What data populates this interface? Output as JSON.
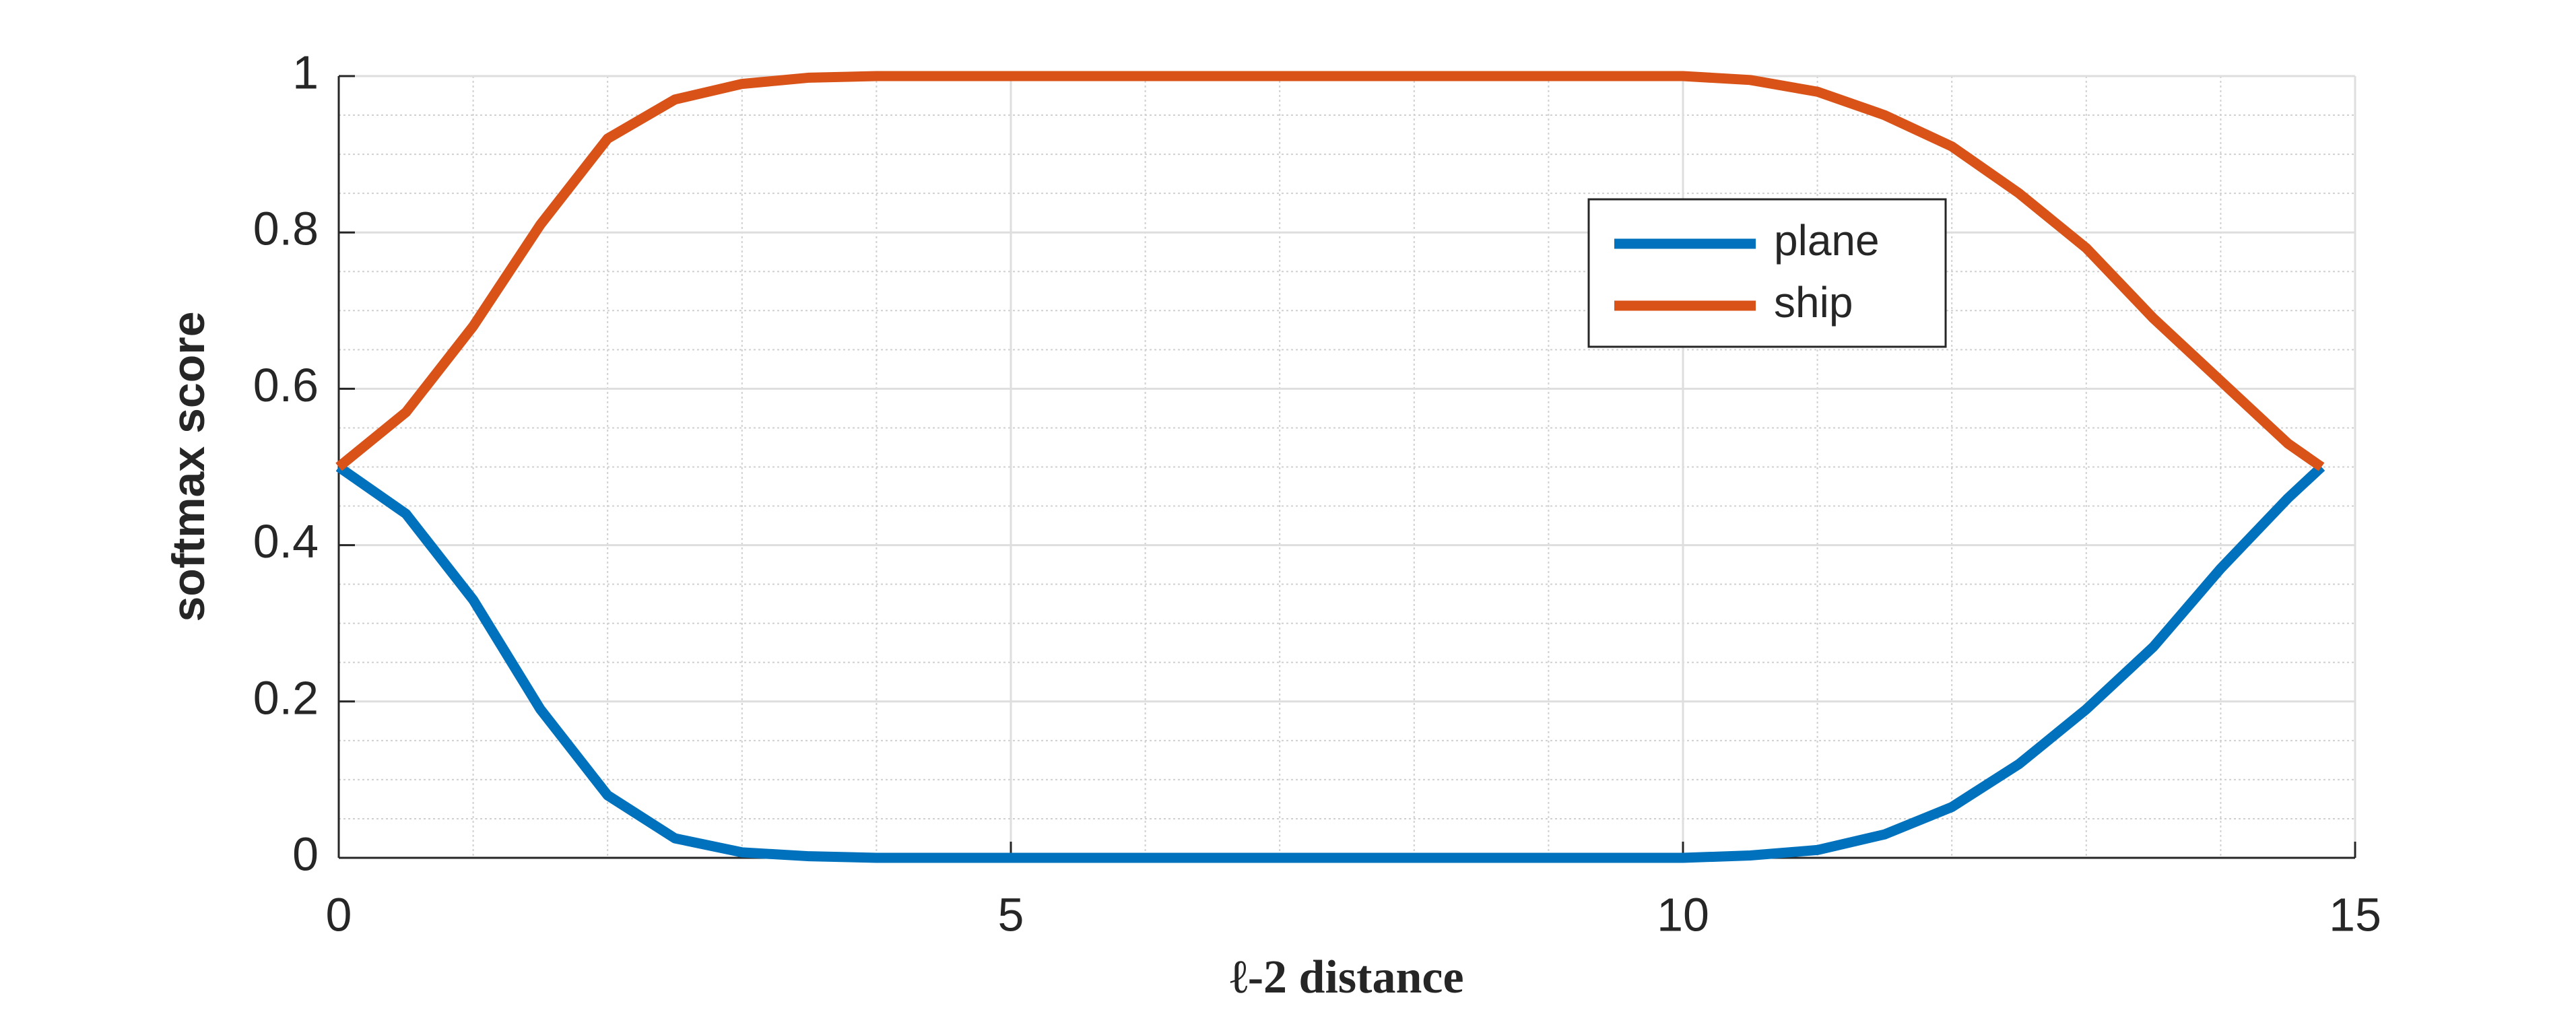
{
  "chart_data": {
    "type": "line",
    "xlabel": "ℓ-2 distance",
    "ylabel": "softmax score",
    "x": [
      0,
      0.5,
      1,
      1.5,
      2,
      2.5,
      3,
      3.5,
      4,
      4.5,
      5,
      5.5,
      6,
      6.5,
      7,
      7.5,
      8,
      8.5,
      9,
      9.5,
      10,
      10.5,
      11,
      11.5,
      12,
      12.5,
      13,
      13.5,
      14,
      14.5,
      14.75
    ],
    "series": [
      {
        "name": "plane",
        "color": "#0072bd",
        "values": [
          0.5,
          0.44,
          0.33,
          0.19,
          0.08,
          0.025,
          0.007,
          0.002,
          0,
          0,
          0,
          0,
          0,
          0,
          0,
          0,
          0,
          0,
          0,
          0,
          0,
          0.003,
          0.01,
          0.03,
          0.065,
          0.12,
          0.19,
          0.27,
          0.37,
          0.46,
          0.5
        ]
      },
      {
        "name": "ship",
        "color": "#d95319",
        "values": [
          0.5,
          0.57,
          0.68,
          0.81,
          0.92,
          0.97,
          0.99,
          0.998,
          1,
          1,
          1,
          1,
          1,
          1,
          1,
          1,
          1,
          1,
          1,
          1,
          1,
          0.995,
          0.98,
          0.95,
          0.91,
          0.85,
          0.78,
          0.69,
          0.61,
          0.53,
          0.5
        ]
      }
    ],
    "xlim": [
      0,
      15
    ],
    "xticks": [
      0,
      5,
      10,
      15
    ],
    "ylim": [
      0,
      1
    ],
    "yticks": [
      0,
      0.2,
      0.4,
      0.6,
      0.8,
      1
    ],
    "grid": true,
    "minor_grid": true,
    "legend": "northeast"
  }
}
